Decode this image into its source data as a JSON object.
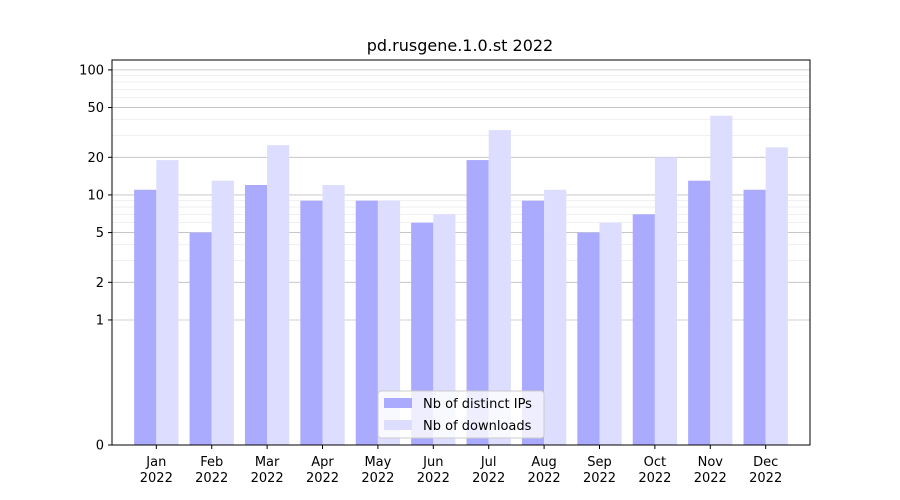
{
  "chart_data": {
    "type": "bar",
    "title": "pd.rusgene.1.0.st 2022",
    "xlabel": "",
    "ylabel": "",
    "y_scale": "symlog",
    "ylim": [
      0,
      120
    ],
    "y_ticks": [
      0,
      1,
      2,
      5,
      10,
      20,
      50,
      100
    ],
    "categories": [
      "Jan\n2022",
      "Feb\n2022",
      "Mar\n2022",
      "Apr\n2022",
      "May\n2022",
      "Jun\n2022",
      "Jul\n2022",
      "Aug\n2022",
      "Sep\n2022",
      "Oct\n2022",
      "Nov\n2022",
      "Dec\n2022"
    ],
    "series": [
      {
        "name": "Nb of distinct IPs",
        "color": "#aaaaff",
        "values": [
          11,
          5,
          12,
          9,
          9,
          6,
          19,
          9,
          5,
          7,
          13,
          11
        ]
      },
      {
        "name": "Nb of downloads",
        "color": "#ddddff",
        "values": [
          19,
          13,
          25,
          12,
          9,
          7,
          33,
          11,
          6,
          20,
          43,
          24
        ]
      }
    ],
    "legend_position": "bottom-center",
    "grid": true
  }
}
